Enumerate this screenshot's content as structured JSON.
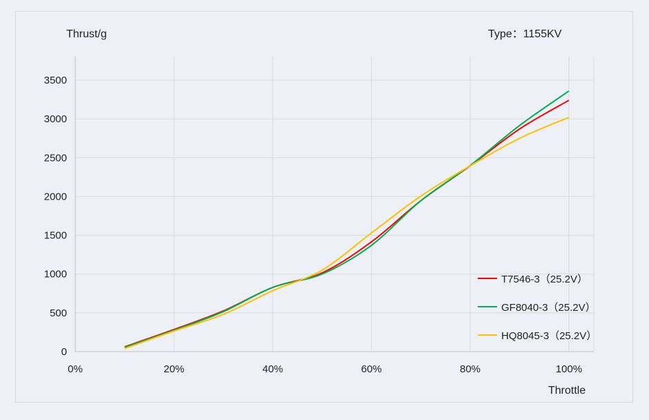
{
  "chart_data": {
    "type": "line",
    "title": "",
    "ylabel": "Thrust/g",
    "xlabel": "Throttle",
    "annotation": "Type：1155KV",
    "x": [
      10,
      20,
      30,
      40,
      50,
      60,
      70,
      80,
      90,
      100
    ],
    "x_ticks": [
      "0%",
      "20%",
      "40%",
      "60%",
      "80%",
      "100%"
    ],
    "y_ticks": [
      "0",
      "500",
      "1000",
      "1500",
      "2000",
      "2500",
      "3000",
      "3500"
    ],
    "xlim": [
      0,
      105
    ],
    "ylim": [
      0,
      3750
    ],
    "grid": true,
    "legend_position": "bottom-right",
    "series": [
      {
        "name": "T7546-3（25.2V）",
        "color": "#ff0000",
        "values": [
          62,
          285,
          525,
          828,
          1015,
          1415,
          1945,
          2395,
          2870,
          3240
        ]
      },
      {
        "name": "GF8040-3（25.2V）",
        "color": "#00b050",
        "values": [
          55,
          275,
          515,
          828,
          1000,
          1370,
          1945,
          2400,
          2915,
          3360
        ]
      },
      {
        "name": "HQ8045-3（25.2V）",
        "color": "#ffc000",
        "values": [
          40,
          265,
          480,
          785,
          1050,
          1530,
          2005,
          2395,
          2750,
          3020
        ]
      }
    ]
  }
}
